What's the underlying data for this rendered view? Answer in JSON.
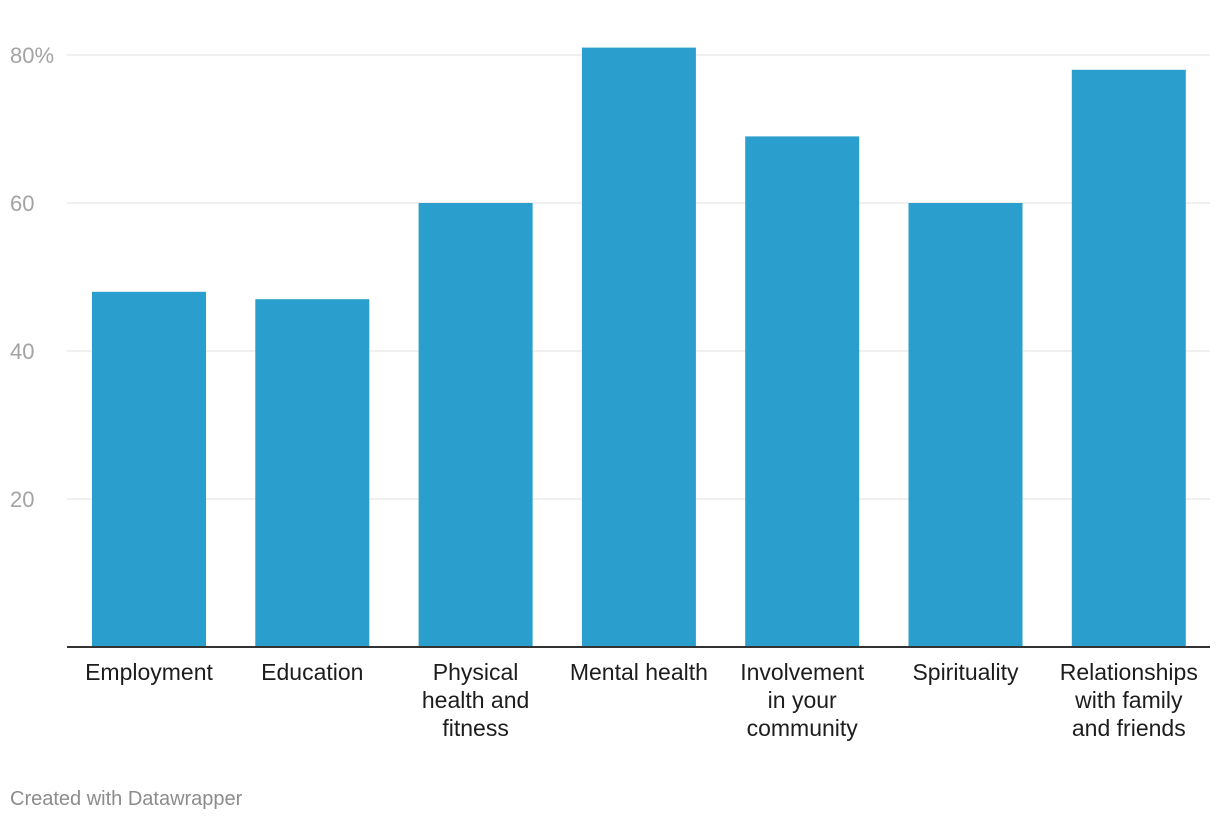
{
  "chart_data": {
    "type": "bar",
    "categories": [
      [
        "Employment"
      ],
      [
        "Education"
      ],
      [
        "Physical",
        "health and",
        "fitness"
      ],
      [
        "Mental health"
      ],
      [
        "Involvement",
        "in your",
        "community"
      ],
      [
        "Spirituality"
      ],
      [
        "Relationships",
        "with family",
        "and friends"
      ]
    ],
    "values": [
      48,
      47,
      60,
      81,
      69,
      60,
      78
    ],
    "ylim": [
      0,
      80
    ],
    "yticks": [
      {
        "value": 20,
        "label": "20"
      },
      {
        "value": 40,
        "label": "40"
      },
      {
        "value": 60,
        "label": "60"
      },
      {
        "value": 80,
        "label": "80%"
      }
    ],
    "grid": true,
    "bar_color": "#2a9fcd",
    "grid_color": "#e2e2e2",
    "axis_color": "#333333"
  },
  "footer": {
    "credit": "Created with Datawrapper"
  }
}
